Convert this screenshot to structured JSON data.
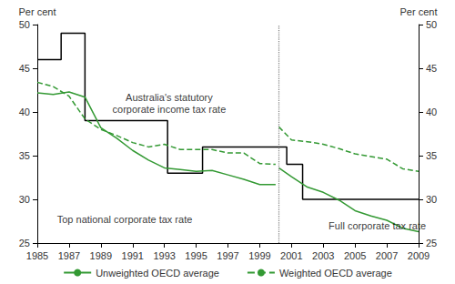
{
  "chart_data": {
    "type": "line",
    "y_label": "Per cent",
    "y2_label": "Per cent",
    "xlim": [
      1985,
      2009
    ],
    "xticks": [
      1985,
      1987,
      1989,
      1991,
      1993,
      1995,
      1997,
      1999,
      2001,
      2003,
      2005,
      2007,
      2009
    ],
    "ylim": [
      25,
      50
    ],
    "yticks": [
      25,
      30,
      35,
      40,
      45,
      50
    ],
    "y2lim": [
      25,
      50
    ],
    "y2ticks": [
      25,
      30,
      35,
      40,
      45,
      50
    ],
    "grid": false,
    "legend": "bottom",
    "divider_x": 2000.2,
    "series": [
      {
        "name": "Australia's statutory\ncorporate income tax rate",
        "type": "step",
        "color": "#000000",
        "line_style": "solid",
        "x": [
          1985,
          1986.5,
          1988,
          1993.2,
          1995.4,
          2000.7,
          2001.7,
          2009
        ],
        "values": [
          46,
          49,
          39,
          33,
          36,
          34,
          30,
          30
        ]
      },
      {
        "name": "Unweighted OECD average",
        "type": "line",
        "color": "#339933",
        "line_style": "solid",
        "x": [
          1985,
          1986,
          1987,
          1988,
          1989,
          1990,
          1991,
          1992,
          1993,
          1994,
          1995,
          1996,
          1997,
          1998,
          1999,
          2000,
          null,
          2000.2,
          2001,
          2002,
          2003,
          2004,
          2005,
          2006,
          2007,
          2008,
          2009
        ],
        "values": [
          42.2,
          42.0,
          42.3,
          41.7,
          38.2,
          37.0,
          35.6,
          34.5,
          33.6,
          33.4,
          33.2,
          33.3,
          32.8,
          32.3,
          31.7,
          31.7,
          null,
          33.6,
          32.6,
          31.4,
          30.8,
          29.9,
          28.7,
          28.1,
          27.6,
          26.7,
          26.3
        ]
      },
      {
        "name": "Weighted OECD average",
        "type": "line",
        "color": "#339933",
        "line_style": "dashed",
        "x": [
          1985,
          1986,
          1987,
          1988,
          1989,
          1990,
          1991,
          1992,
          1993,
          1994,
          1995,
          1996,
          1997,
          1998,
          1999,
          2000,
          null,
          2000.2,
          2001,
          2002,
          2003,
          2004,
          2005,
          2006,
          2007,
          2008,
          2009
        ],
        "values": [
          43.4,
          42.9,
          41.8,
          39.2,
          38.0,
          37.3,
          36.5,
          36.0,
          36.3,
          35.7,
          35.7,
          35.7,
          35.3,
          35.3,
          34.1,
          34.0,
          null,
          38.3,
          36.8,
          36.6,
          36.3,
          35.8,
          35.2,
          34.9,
          34.6,
          33.5,
          33.2
        ]
      }
    ],
    "annotations": [
      {
        "text": "Top national corporate tax rate",
        "x": 1990.5,
        "y": 27.7
      },
      {
        "text": "Full corporate tax rate",
        "x": 2006.4,
        "y": 27
      }
    ]
  }
}
